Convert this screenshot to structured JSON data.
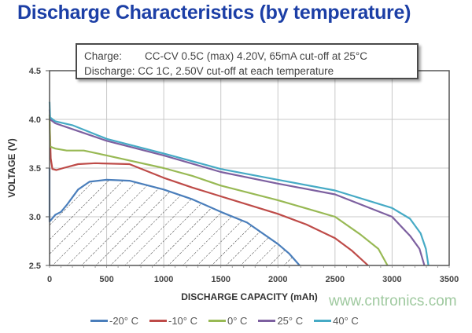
{
  "title": "Discharge Characteristics (by temperature)",
  "note": {
    "charge_label": "Charge:",
    "charge_text": "CC-CV 0.5C (max) 4.20V, 65mA cut-off at 25°C",
    "discharge_label": "Discharge:",
    "discharge_text": "CC 1C, 2.50V cut-off at each temperature"
  },
  "watermark": "www.cntronics.com",
  "chart_data": {
    "type": "line",
    "title": "Discharge Characteristics (by temperature)",
    "xlabel": "DISCHARGE CAPACITY (mAh)",
    "ylabel": "VOLTAGE (V)",
    "xlim": [
      0,
      3500
    ],
    "ylim": [
      2.5,
      4.5
    ],
    "xticks": [
      "0",
      "500",
      "1000",
      "1500",
      "2000",
      "2500",
      "3000",
      "3500"
    ],
    "yticks": [
      "2.5",
      "3.0",
      "3.5",
      "4.0",
      "4.5"
    ],
    "grid": true,
    "legend": "bottom",
    "hatched_series": "-20° C",
    "series": [
      {
        "name": "-20° C",
        "color": "#4a7ebb",
        "points": [
          [
            0,
            3.5
          ],
          [
            0,
            2.95
          ],
          [
            50,
            3.02
          ],
          [
            100,
            3.05
          ],
          [
            150,
            3.12
          ],
          [
            250,
            3.28
          ],
          [
            350,
            3.36
          ],
          [
            500,
            3.38
          ],
          [
            700,
            3.37
          ],
          [
            1000,
            3.28
          ],
          [
            1250,
            3.18
          ],
          [
            1500,
            3.05
          ],
          [
            1730,
            2.94
          ],
          [
            2000,
            2.72
          ],
          [
            2100,
            2.62
          ],
          [
            2190,
            2.5
          ]
        ]
      },
      {
        "name": "-10° C",
        "color": "#be4b48",
        "points": [
          [
            0,
            4.0
          ],
          [
            10,
            3.6
          ],
          [
            25,
            3.49
          ],
          [
            60,
            3.48
          ],
          [
            120,
            3.5
          ],
          [
            250,
            3.54
          ],
          [
            400,
            3.55
          ],
          [
            700,
            3.54
          ],
          [
            1000,
            3.4
          ],
          [
            1250,
            3.3
          ],
          [
            1500,
            3.21
          ],
          [
            2000,
            3.03
          ],
          [
            2250,
            2.92
          ],
          [
            2500,
            2.78
          ],
          [
            2650,
            2.65
          ],
          [
            2790,
            2.5
          ]
        ]
      },
      {
        "name": "0° C",
        "color": "#98b954",
        "points": [
          [
            0,
            4.05
          ],
          [
            5,
            3.72
          ],
          [
            50,
            3.7
          ],
          [
            150,
            3.68
          ],
          [
            300,
            3.68
          ],
          [
            500,
            3.63
          ],
          [
            1000,
            3.5
          ],
          [
            1250,
            3.42
          ],
          [
            1500,
            3.32
          ],
          [
            2000,
            3.17
          ],
          [
            2500,
            3.0
          ],
          [
            2720,
            2.82
          ],
          [
            2880,
            2.67
          ],
          [
            2960,
            2.5
          ]
        ]
      },
      {
        "name": "25° C",
        "color": "#7d60a0",
        "points": [
          [
            0,
            4.1
          ],
          [
            5,
            4.0
          ],
          [
            50,
            3.96
          ],
          [
            150,
            3.92
          ],
          [
            500,
            3.78
          ],
          [
            1000,
            3.63
          ],
          [
            1500,
            3.46
          ],
          [
            2000,
            3.34
          ],
          [
            2500,
            3.23
          ],
          [
            3000,
            3.0
          ],
          [
            3160,
            2.8
          ],
          [
            3240,
            2.67
          ],
          [
            3283,
            2.5
          ]
        ]
      },
      {
        "name": "40° C",
        "color": "#46aac5",
        "points": [
          [
            0,
            4.18
          ],
          [
            5,
            4.02
          ],
          [
            50,
            3.98
          ],
          [
            200,
            3.94
          ],
          [
            500,
            3.8
          ],
          [
            1000,
            3.65
          ],
          [
            1500,
            3.49
          ],
          [
            2000,
            3.38
          ],
          [
            2500,
            3.27
          ],
          [
            3000,
            3.09
          ],
          [
            3157,
            2.98
          ],
          [
            3250,
            2.83
          ],
          [
            3296,
            2.67
          ],
          [
            3318,
            2.5
          ]
        ]
      }
    ]
  }
}
